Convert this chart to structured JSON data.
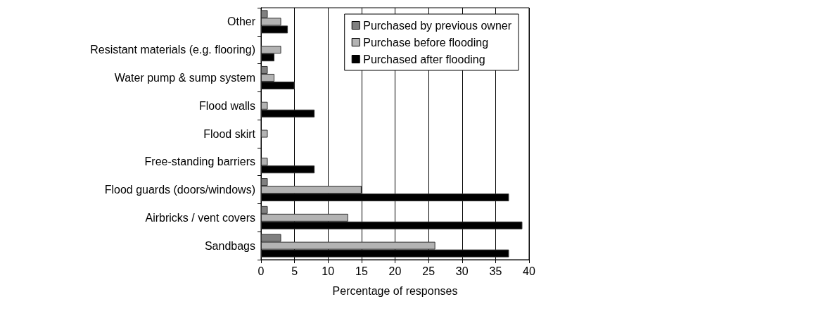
{
  "chart_data": {
    "type": "bar",
    "orientation": "horizontal",
    "xlabel": "Percentage of responses",
    "categories": [
      "Other",
      "Resistant materials (e.g. flooring)",
      "Water pump & sump system",
      "Flood walls",
      "Flood skirt",
      "Free-standing barriers",
      "Flood guards (doors/windows)",
      "Airbricks / vent covers",
      "Sandbags"
    ],
    "series": [
      {
        "name": "Purchased by previous owner",
        "color": "#808080",
        "values": [
          1,
          0,
          1,
          0,
          0,
          0,
          1,
          1,
          3
        ]
      },
      {
        "name": "Purchase before flooding",
        "color": "#b3b3b3",
        "values": [
          3,
          3,
          2,
          1,
          1,
          1,
          15,
          13,
          26
        ]
      },
      {
        "name": "Purchased after flooding",
        "color": "#000000",
        "values": [
          4,
          2,
          5,
          8,
          0,
          8,
          37,
          39,
          37
        ]
      }
    ],
    "xlim": [
      0,
      40
    ],
    "xticks": [
      0,
      5,
      10,
      15,
      20,
      25,
      30,
      35,
      40
    ],
    "grid": "x",
    "legend": "top right"
  }
}
